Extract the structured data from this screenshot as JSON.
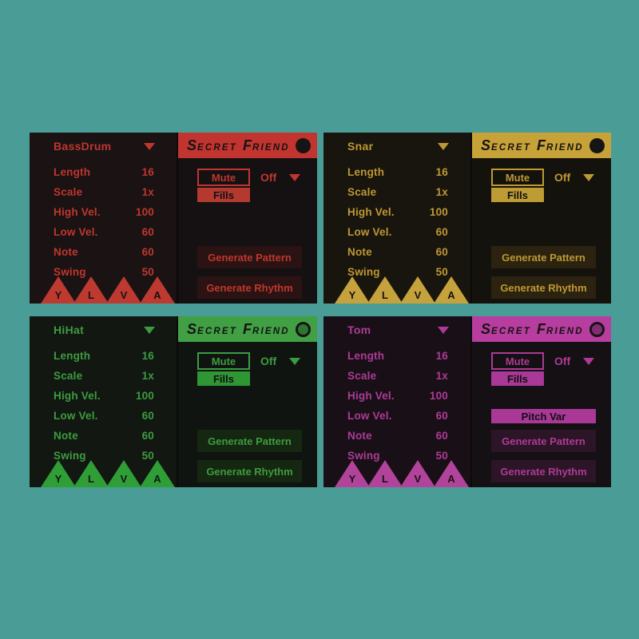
{
  "background_color": "#4A9D96",
  "brand": {
    "word1_initial": "S",
    "word1_rest": "ECRET",
    "word2_initial": "F",
    "word2_rest": "RIEND"
  },
  "triangle_letters": [
    "Y",
    "L",
    "V",
    "A"
  ],
  "panels": [
    {
      "name": "BassDrum",
      "led": "filled",
      "theme": {
        "accent": "#BE372F",
        "header": "#C23430",
        "fill": "#B43A30",
        "triangle": "#BE3A31",
        "button_bg": "#2A1312",
        "bg_left": "#1A1213",
        "bg_right": "#151012",
        "led_inner": "#8E2723"
      },
      "params": [
        {
          "label": "Length",
          "value": "16"
        },
        {
          "label": "Scale",
          "value": "1x"
        },
        {
          "label": "High Vel.",
          "value": "100"
        },
        {
          "label": "Low Vel.",
          "value": "60"
        },
        {
          "label": "Note",
          "value": "60"
        },
        {
          "label": "Swing",
          "value": "50"
        }
      ],
      "controls": {
        "mute": "Mute",
        "mute_state": "Off",
        "fills": "Fills",
        "generate_pattern": "Generate Pattern",
        "generate_rhythm": "Generate Rhythm"
      }
    },
    {
      "name": "Snar",
      "led": "filled",
      "theme": {
        "accent": "#BE9833",
        "header": "#C7A238",
        "fill": "#BD9B35",
        "triangle": "#C5A23C",
        "button_bg": "#2B2310",
        "bg_left": "#18150E",
        "bg_right": "#14120C",
        "led_inner": "#8F7526"
      },
      "params": [
        {
          "label": "Length",
          "value": "16"
        },
        {
          "label": "Scale",
          "value": "1x"
        },
        {
          "label": "High Vel.",
          "value": "100"
        },
        {
          "label": "Low Vel.",
          "value": "60"
        },
        {
          "label": "Note",
          "value": "60"
        },
        {
          "label": "Swing",
          "value": "50"
        }
      ],
      "controls": {
        "mute": "Mute",
        "mute_state": "Off",
        "fills": "Fills",
        "generate_pattern": "Generate Pattern",
        "generate_rhythm": "Generate Rhythm"
      }
    },
    {
      "name": "HiHat",
      "led": "outline",
      "theme": {
        "accent": "#3C9C40",
        "header": "#419F44",
        "fill": "#2F9634",
        "triangle": "#2F9E37",
        "button_bg": "#152710",
        "bg_left": "#121711",
        "bg_right": "#101410",
        "led_inner": "#2E7531"
      },
      "params": [
        {
          "label": "Length",
          "value": "16"
        },
        {
          "label": "Scale",
          "value": "1x"
        },
        {
          "label": "High Vel.",
          "value": "100"
        },
        {
          "label": "Low Vel.",
          "value": "60"
        },
        {
          "label": "Note",
          "value": "60"
        },
        {
          "label": "Swing",
          "value": "50"
        }
      ],
      "controls": {
        "mute": "Mute",
        "mute_state": "Off",
        "fills": "Fills",
        "generate_pattern": "Generate Pattern",
        "generate_rhythm": "Generate Rhythm"
      }
    },
    {
      "name": "Tom",
      "led": "outline",
      "theme": {
        "accent": "#AE3A96",
        "header": "#B73D9F",
        "fill": "#A93897",
        "triangle": "#B2439B",
        "button_bg": "#2B1527",
        "bg_left": "#191017",
        "bg_right": "#141013",
        "led_inner": "#832C74"
      },
      "params": [
        {
          "label": "Length",
          "value": "16"
        },
        {
          "label": "Scale",
          "value": "1x"
        },
        {
          "label": "High Vel.",
          "value": "100"
        },
        {
          "label": "Low Vel.",
          "value": "60"
        },
        {
          "label": "Note",
          "value": "60"
        },
        {
          "label": "Swing",
          "value": "50"
        }
      ],
      "controls": {
        "mute": "Mute",
        "mute_state": "Off",
        "fills": "Fills",
        "pitch_var": "Pitch Var",
        "generate_pattern": "Generate Pattern",
        "generate_rhythm": "Generate Rhythm"
      }
    }
  ]
}
